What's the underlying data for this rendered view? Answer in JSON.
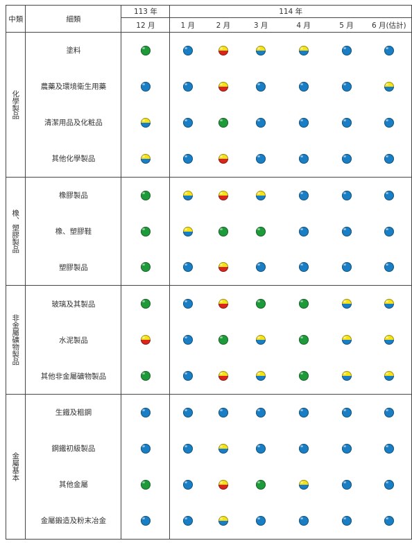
{
  "headers": {
    "category": "中類",
    "subcategory": "細類",
    "year_prev": "113 年",
    "year_curr": "114 年",
    "months": [
      "12 月",
      "1 月",
      "2 月",
      "3 月",
      "4 月",
      "5 月",
      "6 月(估計)"
    ]
  },
  "signal_colors": {
    "blue": "#1a7ec4",
    "green": "#1f9a3a",
    "yellow": "#f5e21a",
    "red": "#d9261c"
  },
  "groups": [
    {
      "name": "化學製品",
      "rows": [
        {
          "name": "塗料",
          "signals": [
            "green",
            "blue",
            "yellow-red",
            "yellow-blue",
            "yellow-blue",
            "blue",
            "blue"
          ]
        },
        {
          "name": "農藥及環境衛生用藥",
          "signals": [
            "blue",
            "blue",
            "yellow-red",
            "blue",
            "blue",
            "blue",
            "yellow-blue"
          ]
        },
        {
          "name": "清潔用品及化粧品",
          "signals": [
            "yellow-blue",
            "blue",
            "green",
            "blue",
            "blue",
            "blue",
            "blue"
          ]
        },
        {
          "name": "其他化學製品",
          "signals": [
            "yellow-blue",
            "blue",
            "yellow-red",
            "blue",
            "blue",
            "blue",
            "blue"
          ]
        }
      ]
    },
    {
      "name": "橡、塑膠製品",
      "rows": [
        {
          "name": "橡膠製品",
          "signals": [
            "green",
            "yellow-blue",
            "yellow-red",
            "yellow-blue",
            "blue",
            "blue",
            "blue"
          ]
        },
        {
          "name": "橡、塑膠鞋",
          "signals": [
            "green",
            "yellow-blue",
            "green",
            "green",
            "blue",
            "blue",
            "blue"
          ]
        },
        {
          "name": "塑膠製品",
          "signals": [
            "green",
            "blue",
            "yellow-red",
            "blue",
            "blue",
            "blue",
            "blue"
          ]
        }
      ]
    },
    {
      "name": "非金屬礦物製品",
      "rows": [
        {
          "name": "玻璃及其製品",
          "signals": [
            "green",
            "blue",
            "yellow-red",
            "green",
            "green",
            "yellow-blue",
            "yellow-blue"
          ]
        },
        {
          "name": "水泥製品",
          "signals": [
            "yellow-red",
            "blue",
            "green",
            "yellow-blue",
            "green",
            "yellow-blue",
            "yellow-blue"
          ]
        },
        {
          "name": "其他非金屬礦物製品",
          "signals": [
            "green",
            "blue",
            "yellow-red",
            "yellow-blue",
            "green",
            "yellow-blue",
            "yellow-blue"
          ]
        }
      ]
    },
    {
      "name": "金屬基本",
      "rows": [
        {
          "name": "生鐵及粗鋼",
          "signals": [
            "blue",
            "blue",
            "blue",
            "blue",
            "blue",
            "blue",
            "blue"
          ]
        },
        {
          "name": "鋼鐵初級製品",
          "signals": [
            "blue",
            "blue",
            "yellow-blue",
            "blue",
            "blue",
            "blue",
            "blue"
          ]
        },
        {
          "name": "其他金屬",
          "signals": [
            "green",
            "blue",
            "yellow-red",
            "green",
            "yellow-blue",
            "blue",
            "blue"
          ]
        },
        {
          "name": "金屬鍛造及粉末冶金",
          "signals": [
            "blue",
            "blue",
            "yellow-blue",
            "blue",
            "blue",
            "blue",
            "blue"
          ]
        }
      ]
    }
  ]
}
